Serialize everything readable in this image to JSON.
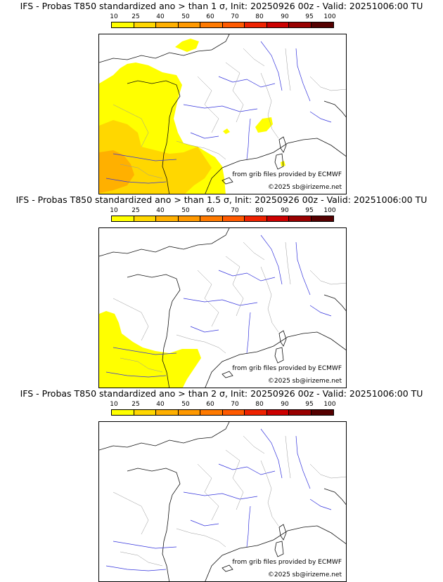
{
  "colorbar": {
    "labels": [
      "10",
      "25",
      "40",
      "50",
      "60",
      "70",
      "80",
      "90",
      "95",
      "100"
    ],
    "colors": [
      "#ffff00",
      "#ffd700",
      "#ffb000",
      "#ff9900",
      "#ff7a00",
      "#ff5a00",
      "#ee2200",
      "#cc0000",
      "#990000",
      "#550000"
    ]
  },
  "colors": {
    "river": "#3333dd",
    "border": "#999999",
    "coast": "#111111",
    "yellow": "#ffff00",
    "gold": "#ffd700",
    "orange": "#ffb000"
  },
  "panels": [
    {
      "title": "IFS - Probas T850  standardized ano > than 1 σ, Init: 20250926 00z - Valid: 20251006:00 TU",
      "credit_source": "from grib files provided by ECMWF",
      "credit_copyright": "©2025 sb@irizeme.net"
    },
    {
      "title": "IFS - Probas T850  standardized ano > than 1.5 σ, Init: 20250926 00z - Valid: 20251006:00 TU",
      "credit_source": "from grib files provided by ECMWF",
      "credit_copyright": "©2025 sb@irizeme.net"
    },
    {
      "title": "IFS - Probas T850  standardized ano > than 2 σ, Init: 20250926 00z - Valid: 20251006:00 TU",
      "credit_source": "from grib files provided by ECMWF",
      "credit_copyright": "©2025 sb@irizeme.net"
    }
  ]
}
